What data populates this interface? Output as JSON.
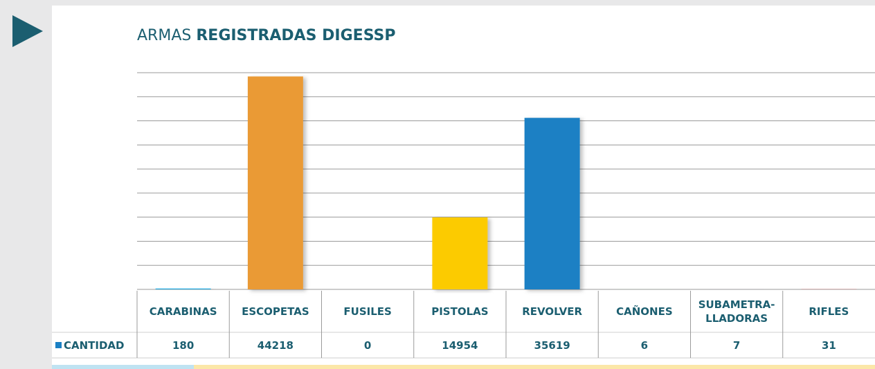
{
  "chart_data": {
    "type": "bar",
    "title": [
      "ARMAS",
      "REGISTRADAS DIGESSP"
    ],
    "categories": [
      "CARABINAS",
      "ESCOPETAS",
      "FUSILES",
      "PISTOLAS",
      "REVOLVER",
      "CAÑONES",
      "SUBAMETRA-LLADORAS",
      "RIFLES"
    ],
    "series": [
      {
        "name": "CANTIDAD",
        "color": "#1a80c4",
        "values": [
          180,
          44218,
          0,
          14954,
          35619,
          6,
          7,
          31
        ],
        "colors": [
          "#1fa8e0",
          "#ea9a36",
          "#8a8a8a",
          "#fccb00",
          "#1a80c4",
          "#4caf50",
          "#7b4f9e",
          "#d32f2f"
        ]
      }
    ],
    "ylim": [
      0,
      45000
    ],
    "yticks": [
      0,
      5000,
      10000,
      15000,
      20000,
      25000,
      30000,
      35000,
      40000,
      45000
    ],
    "grid": true
  }
}
